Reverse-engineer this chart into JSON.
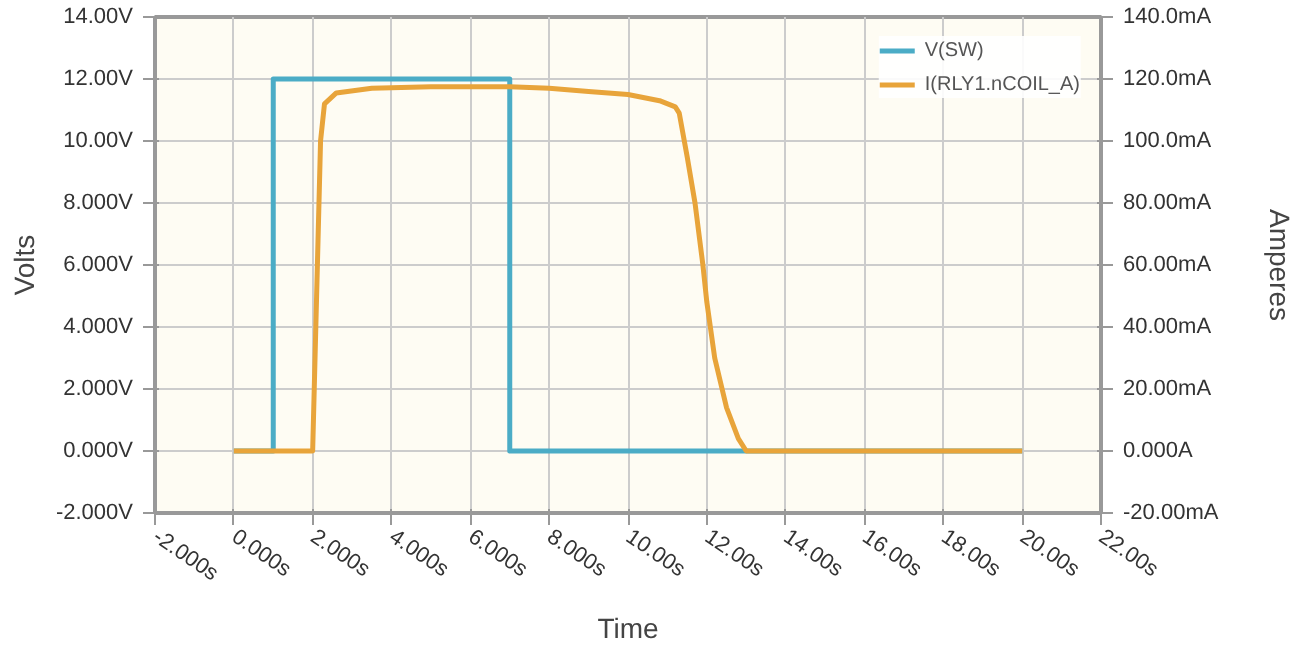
{
  "chart_data": {
    "type": "line",
    "xlabel": "Time",
    "ylabel": "Volts",
    "y2label": "Amperes",
    "xlim": [
      -2,
      22
    ],
    "xticks": [
      {
        "value": -2,
        "label": "-2.000s"
      },
      {
        "value": 0,
        "label": "0.000s"
      },
      {
        "value": 2,
        "label": "2.000s"
      },
      {
        "value": 4,
        "label": "4.000s"
      },
      {
        "value": 6,
        "label": "6.000s"
      },
      {
        "value": 8,
        "label": "8.000s"
      },
      {
        "value": 10,
        "label": "10.00s"
      },
      {
        "value": 12,
        "label": "12.00s"
      },
      {
        "value": 14,
        "label": "14.00s"
      },
      {
        "value": 16,
        "label": "16.00s"
      },
      {
        "value": 18,
        "label": "18.00s"
      },
      {
        "value": 20,
        "label": "20.00s"
      },
      {
        "value": 22,
        "label": "22.00s"
      }
    ],
    "ylim": [
      -2,
      14
    ],
    "yticks": [
      {
        "value": -2,
        "label": "-2.000V"
      },
      {
        "value": 0,
        "label": "0.000V"
      },
      {
        "value": 2,
        "label": "2.000V"
      },
      {
        "value": 4,
        "label": "4.000V"
      },
      {
        "value": 6,
        "label": "6.000V"
      },
      {
        "value": 8,
        "label": "8.000V"
      },
      {
        "value": 10,
        "label": "10.00V"
      },
      {
        "value": 12,
        "label": "12.00V"
      },
      {
        "value": 14,
        "label": "14.00V"
      }
    ],
    "y2lim": [
      -20,
      140
    ],
    "y2ticks": [
      {
        "value": -20,
        "label": "-20.00mA"
      },
      {
        "value": 0,
        "label": "0.000A"
      },
      {
        "value": 20,
        "label": "20.00mA"
      },
      {
        "value": 40,
        "label": "40.00mA"
      },
      {
        "value": 60,
        "label": "60.00mA"
      },
      {
        "value": 80,
        "label": "80.00mA"
      },
      {
        "value": 100,
        "label": "100.0mA"
      },
      {
        "value": 120,
        "label": "120.0mA"
      },
      {
        "value": 140,
        "label": "140.0mA"
      }
    ],
    "grid": true,
    "legend": "top right",
    "series": [
      {
        "name": "V(SW)",
        "color": "#4bacc6",
        "x": [
          0,
          1,
          1,
          7,
          7,
          20
        ],
        "values": [
          0,
          0,
          12,
          12,
          0,
          0
        ]
      },
      {
        "name": "I(RLY1.nCOIL_A)",
        "color": "#e8a43a",
        "axis": "y2",
        "x": [
          0,
          2.0,
          2.1,
          2.2,
          2.3,
          2.6,
          3.5,
          5,
          7,
          8,
          9,
          10,
          10.8,
          11.2,
          11.3,
          11.5,
          11.7,
          11.9,
          12.0,
          12.2,
          12.5,
          12.8,
          13.0,
          20
        ],
        "values": [
          0,
          0,
          50,
          100,
          112,
          115.5,
          117,
          117.5,
          117.5,
          117,
          116,
          115,
          113,
          111,
          109,
          95,
          80,
          60,
          48,
          30,
          14,
          4,
          0,
          0
        ]
      }
    ]
  }
}
